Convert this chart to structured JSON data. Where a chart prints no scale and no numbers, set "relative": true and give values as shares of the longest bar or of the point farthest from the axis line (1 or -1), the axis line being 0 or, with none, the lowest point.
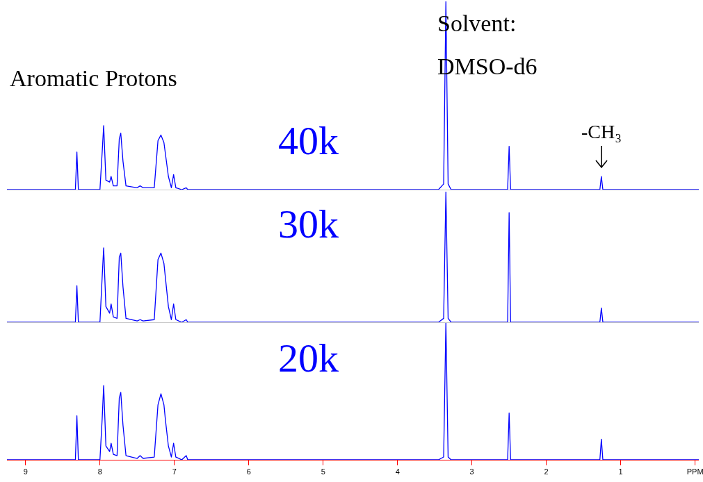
{
  "chart_data": [
    {
      "type": "line",
      "relative": true,
      "title": "40k",
      "tick_labels": false,
      "xlim": [
        9.25,
        -0.05
      ],
      "annotations": [
        "Aromatic Protons",
        "Solvent:",
        "DMSO-d6",
        {
          "text": "-CH₃",
          "x": 1.26,
          "y": 0.09
        }
      ],
      "x": [
        9.25,
        8.33,
        8.31,
        8.29,
        8.0,
        7.97,
        7.95,
        7.92,
        7.87,
        7.85,
        7.82,
        7.77,
        7.74,
        7.72,
        7.69,
        7.65,
        7.5,
        7.46,
        7.42,
        7.27,
        7.22,
        7.18,
        7.14,
        7.12,
        7.08,
        7.04,
        7.01,
        6.98,
        6.9,
        6.84,
        6.82,
        3.45,
        3.38,
        3.35,
        3.32,
        3.28,
        2.52,
        2.5,
        2.48,
        1.28,
        1.26,
        1.24,
        -0.05
      ],
      "series": [
        {
          "color": "#0000ff",
          "values": [
            0,
            0,
            0.2,
            0,
            0,
            0.2,
            0.34,
            0.05,
            0.04,
            0.07,
            0.02,
            0.02,
            0.27,
            0.3,
            0.15,
            0.02,
            0.01,
            0.02,
            0.01,
            0.01,
            0.26,
            0.29,
            0.25,
            0.19,
            0.07,
            0.01,
            0.08,
            0.01,
            0,
            0.01,
            0,
            0,
            0.03,
            1,
            0.03,
            0,
            0,
            0.23,
            0,
            0,
            0.07,
            0,
            0
          ]
        }
      ]
    },
    {
      "type": "line",
      "relative": true,
      "title": "30k",
      "tick_labels": false,
      "xlim": [
        9.25,
        -0.05
      ],
      "x": [
        9.25,
        8.33,
        8.31,
        8.29,
        8.0,
        7.97,
        7.95,
        7.92,
        7.87,
        7.85,
        7.82,
        7.77,
        7.74,
        7.72,
        7.69,
        7.65,
        7.5,
        7.46,
        7.42,
        7.27,
        7.22,
        7.18,
        7.14,
        7.12,
        7.08,
        7.04,
        7.01,
        6.98,
        6.9,
        6.84,
        6.82,
        3.45,
        3.38,
        3.35,
        3.32,
        3.28,
        2.52,
        2.5,
        2.48,
        1.28,
        1.26,
        1.24,
        -0.05
      ],
      "series": [
        {
          "color": "#0000ff",
          "values": [
            0,
            0,
            0.28,
            0,
            0,
            0.35,
            0.57,
            0.12,
            0.07,
            0.14,
            0.04,
            0.03,
            0.5,
            0.53,
            0.27,
            0.03,
            0.01,
            0.02,
            0.01,
            0.02,
            0.48,
            0.53,
            0.45,
            0.34,
            0.12,
            0.02,
            0.14,
            0.02,
            0,
            0.02,
            0,
            0,
            0.03,
            1,
            0.03,
            0,
            0,
            0.84,
            0,
            0,
            0.11,
            0,
            0
          ]
        }
      ]
    },
    {
      "type": "line",
      "relative": true,
      "title": "20k",
      "tick_labels": "x",
      "xlim": [
        9.25,
        -0.05
      ],
      "xticks": [
        9,
        8,
        7,
        6,
        5,
        4,
        3,
        2,
        1,
        {
          "value": 0,
          "label": "PPM"
        }
      ],
      "x": [
        9.25,
        8.33,
        8.31,
        8.29,
        8.0,
        7.97,
        7.95,
        7.92,
        7.87,
        7.85,
        7.82,
        7.77,
        7.74,
        7.72,
        7.69,
        7.65,
        7.5,
        7.46,
        7.42,
        7.27,
        7.22,
        7.18,
        7.14,
        7.12,
        7.08,
        7.04,
        7.01,
        6.98,
        6.9,
        6.84,
        6.82,
        3.45,
        3.38,
        3.35,
        3.32,
        3.28,
        2.52,
        2.5,
        2.48,
        1.28,
        1.26,
        1.24,
        -0.05
      ],
      "series": [
        {
          "color": "#0000ff",
          "values": [
            0,
            0,
            0.32,
            0,
            0,
            0.3,
            0.54,
            0.1,
            0.06,
            0.12,
            0.04,
            0.03,
            0.45,
            0.49,
            0.25,
            0.03,
            0.01,
            0.03,
            0.01,
            0.02,
            0.4,
            0.48,
            0.4,
            0.29,
            0.1,
            0.02,
            0.12,
            0.02,
            0,
            0.03,
            0,
            0,
            0.02,
            1,
            0.02,
            0,
            0,
            0.34,
            0,
            0,
            0.15,
            0,
            0
          ]
        }
      ]
    }
  ]
}
